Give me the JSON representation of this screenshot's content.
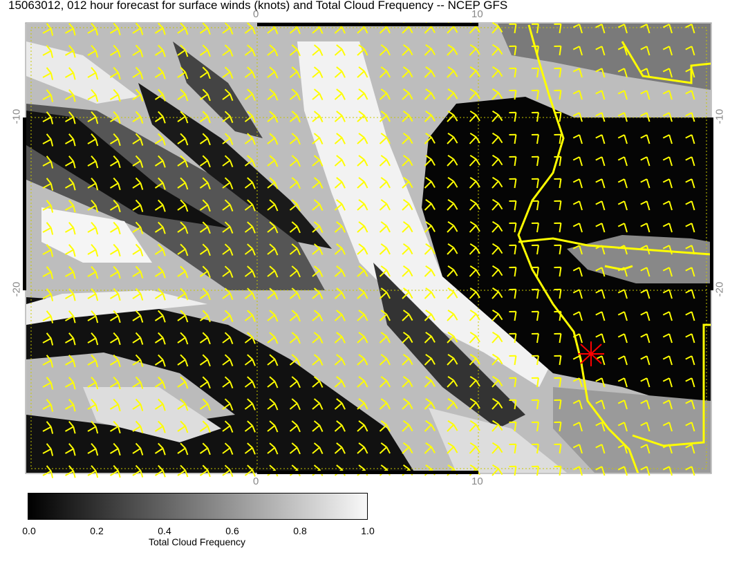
{
  "title": "15063012, 012 hour forecast for surface winds (knots) and Total Cloud Frequency -- NCEP GFS",
  "axes": {
    "top_labels": [
      "0",
      "10"
    ],
    "bottom_labels": [
      "0",
      "10"
    ],
    "left_labels": [
      "-10",
      "-20"
    ],
    "right_labels": [
      "-10",
      "-20"
    ]
  },
  "colorbar": {
    "label": "Total Cloud Frequency",
    "ticks": [
      "0.0",
      "0.2",
      "0.4",
      "0.6",
      "0.8",
      "1.0"
    ],
    "min_color": "#000000",
    "max_color": "#f8f8f8"
  },
  "colors": {
    "wind_barbs": "#ffff00",
    "coastline": "#ffff00",
    "marker": "#ff0000",
    "grid": "#c8c800"
  }
}
